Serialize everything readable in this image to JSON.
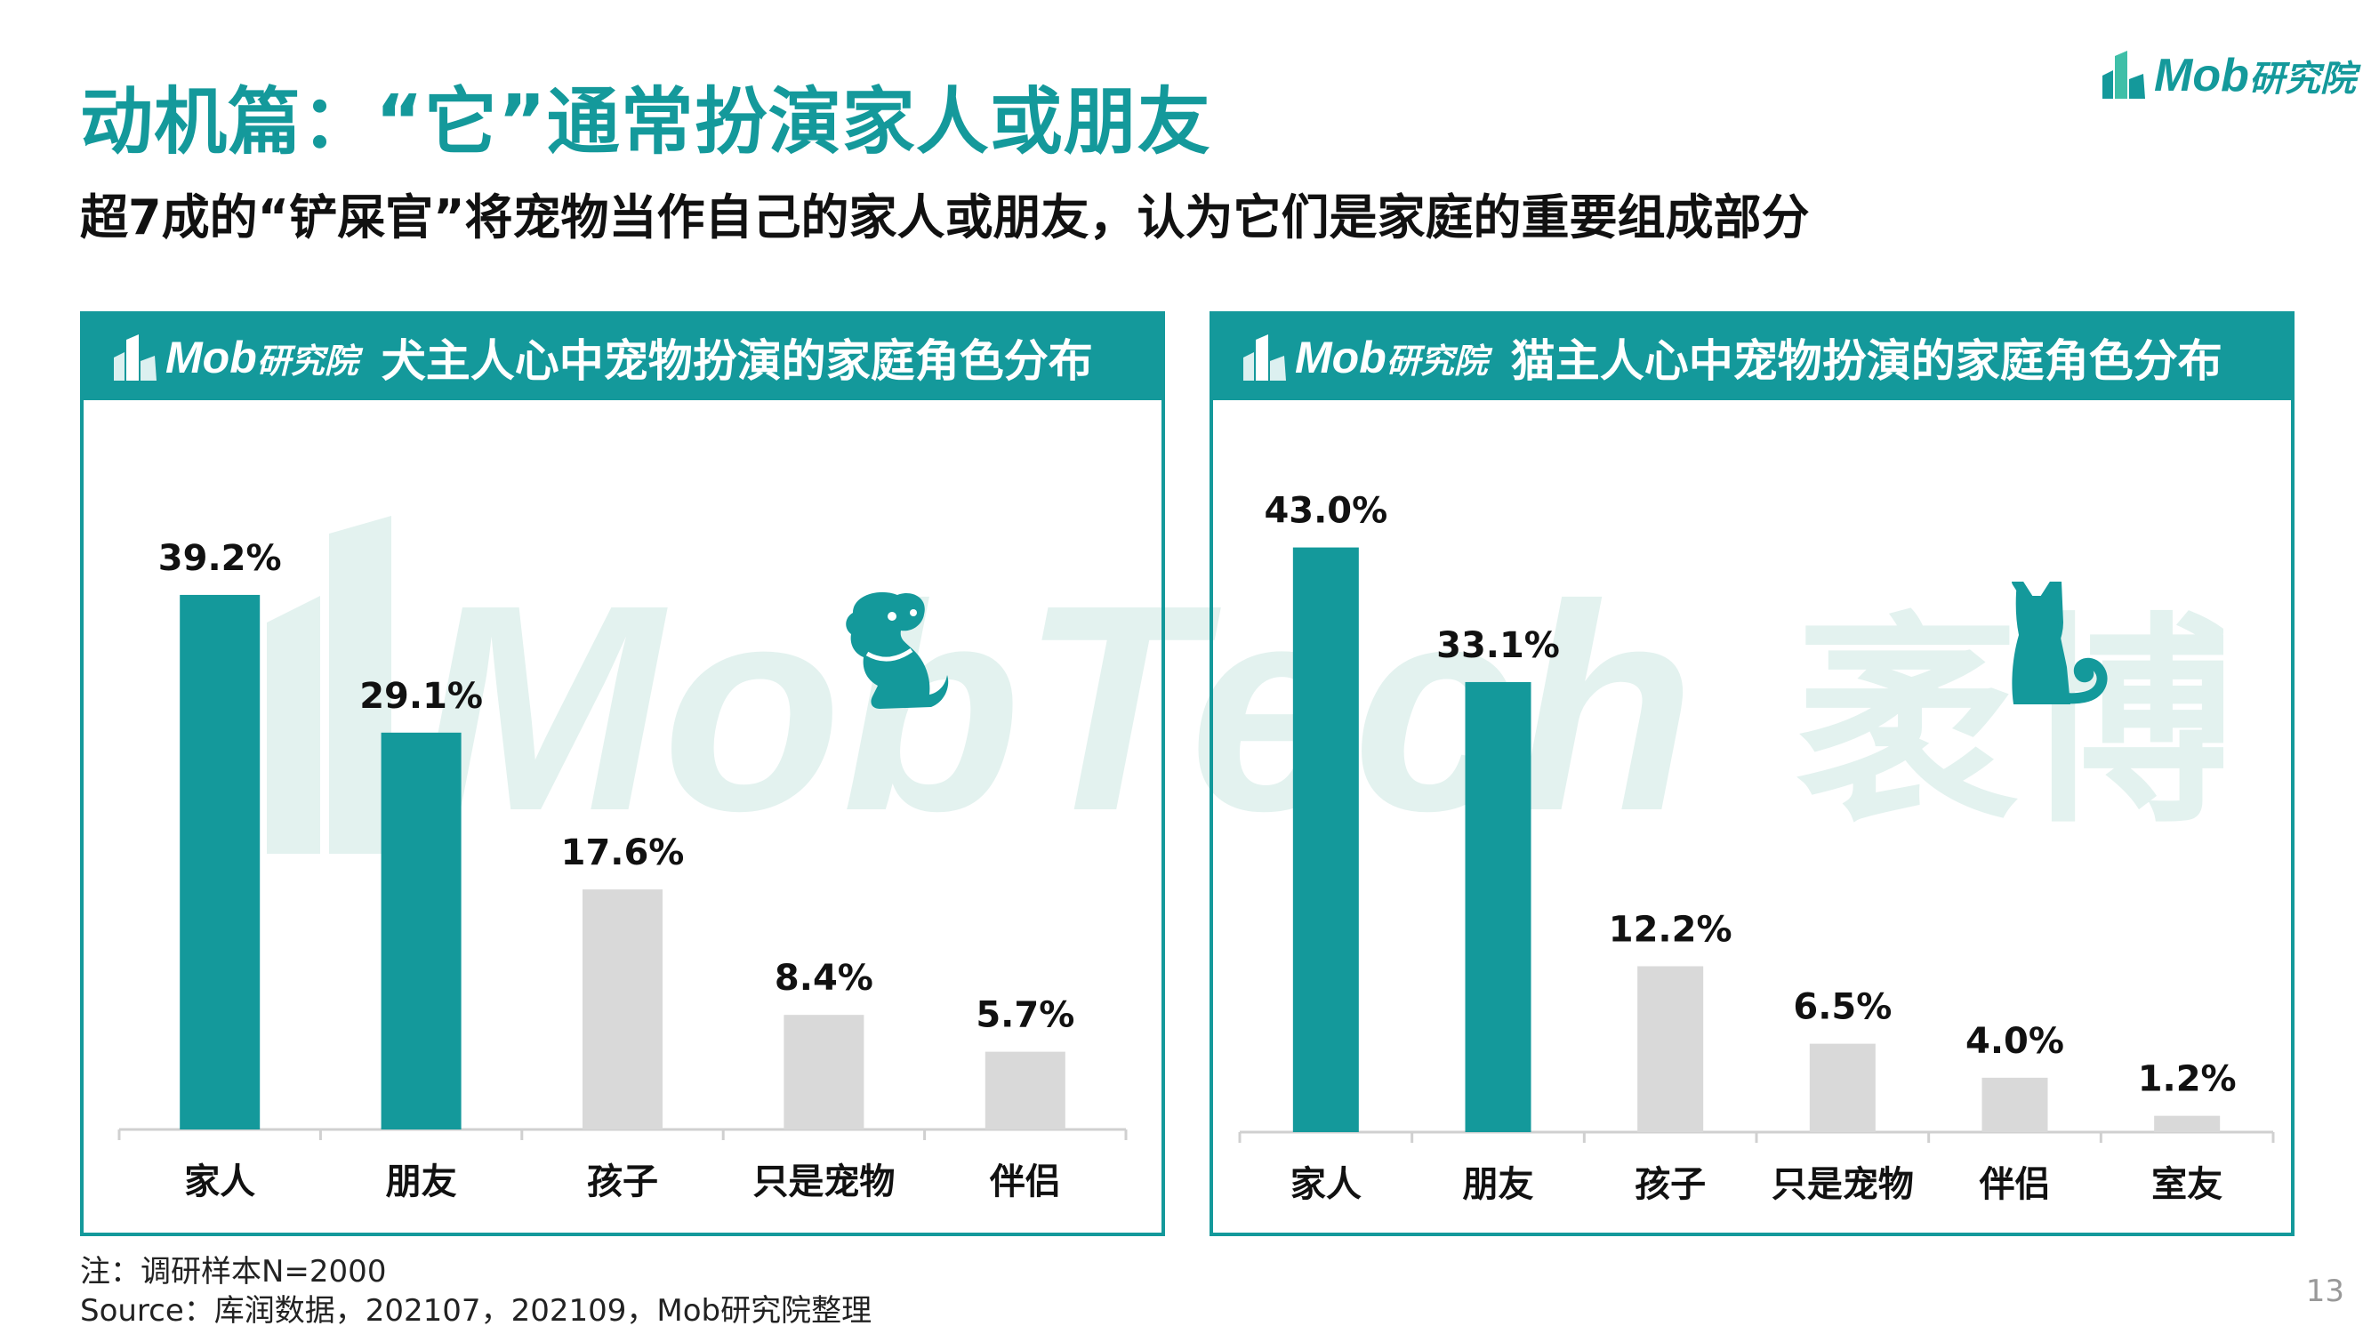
{
  "title": "动机篇：“它”通常扮演家人或朋友",
  "subtitle": "超7成的“铲屎官”将宠物当作自己的家人或朋友，认为它们是家庭的重要组成部分",
  "brand": {
    "latin": "Mob",
    "han": "研究院"
  },
  "watermark": {
    "latin": "MobTech",
    "han": "袤博"
  },
  "colors": {
    "accent": "#14999b",
    "muted": "#d9d9d9",
    "text": "#111111"
  },
  "icons": {
    "dog": "dog-icon",
    "cat": "cat-icon",
    "logo": "mob-logo-icon"
  },
  "footer": {
    "note": "注：调研样本N=2000",
    "source": "Source：库润数据，202107，202109，Mob研究院整理",
    "page": "13"
  },
  "chart_data": [
    {
      "type": "bar",
      "title": "犬主人心中宠物扮演的家庭角色分布",
      "categories": [
        "家人",
        "朋友",
        "孩子",
        "只是宠物",
        "伴侣"
      ],
      "values": [
        39.2,
        29.1,
        17.6,
        8.4,
        5.7
      ],
      "labels": [
        "39.2%",
        "29.1%",
        "17.6%",
        "8.4%",
        "5.7%"
      ],
      "highlight": [
        true,
        true,
        false,
        false,
        false
      ],
      "ylim": [
        0,
        45
      ],
      "grid": false,
      "legend": "none"
    },
    {
      "type": "bar",
      "title": "猫主人心中宠物扮演的家庭角色分布",
      "categories": [
        "家人",
        "朋友",
        "孩子",
        "只是宠物",
        "伴侣",
        "室友"
      ],
      "values": [
        43.0,
        33.1,
        12.2,
        6.5,
        4.0,
        1.2
      ],
      "labels": [
        "43.0%",
        "33.1%",
        "12.2%",
        "6.5%",
        "4.0%",
        "1.2%"
      ],
      "highlight": [
        true,
        true,
        false,
        false,
        false,
        false
      ],
      "ylim": [
        0,
        45
      ],
      "grid": false,
      "legend": "none"
    }
  ]
}
